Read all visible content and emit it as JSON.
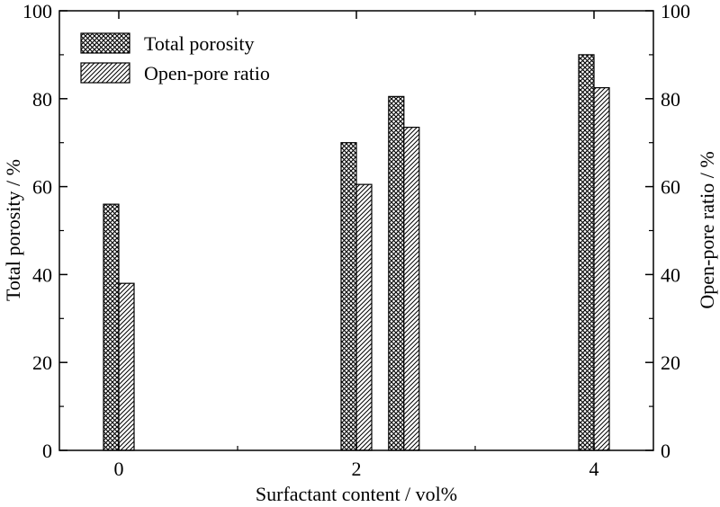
{
  "chart_data": {
    "type": "bar",
    "xlabel": "Surfactant content / vol%",
    "ylabel_left": "Total porosity / %",
    "ylabel_right": "Open-pore ratio / %",
    "xlim": [
      -0.5,
      4.5
    ],
    "ylim": [
      0,
      100
    ],
    "xticks": [
      "0",
      "2",
      "4"
    ],
    "yticks": [
      "0",
      "20",
      "40",
      "60",
      "80",
      "100"
    ],
    "legend_position": "top-left",
    "series": [
      {
        "name": "Total porosity",
        "pattern": "crosshatch",
        "points": [
          {
            "x": 0,
            "y": 56
          },
          {
            "x": 2,
            "y": 70
          },
          {
            "x": 2.4,
            "y": 80.5
          },
          {
            "x": 4,
            "y": 90
          }
        ]
      },
      {
        "name": "Open-pore ratio",
        "pattern": "diagonal-hatch",
        "points": [
          {
            "x": 0,
            "y": 38
          },
          {
            "x": 2,
            "y": 60.5
          },
          {
            "x": 2.4,
            "y": 73.5
          },
          {
            "x": 4,
            "y": 82.5
          }
        ]
      }
    ]
  }
}
